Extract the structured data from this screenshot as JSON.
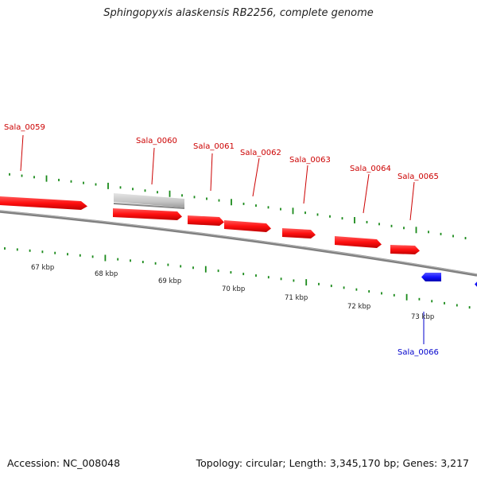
{
  "title": "Sphingopyxis alaskensis RB2256, complete genome",
  "footer": {
    "accession": "Accession: NC_008048",
    "summary": "Topology: circular; Length: 3,345,170 bp; Genes: 3,217"
  },
  "colors": {
    "forward_gene": "#ff1a1a",
    "reverse_gene": "#1a1aff",
    "pseudo_gene": "#c8c8c8",
    "backbone": "#808080",
    "tick": "#1a8a1a",
    "forward_label": "#cc0000",
    "reverse_label": "#0000cc"
  },
  "genes": [
    {
      "name": "Sala_0059",
      "strand": "+",
      "type": "gene"
    },
    {
      "name": "Sala_0060",
      "strand": "+",
      "type": "pseudo"
    },
    {
      "name": "Sala_0061",
      "strand": "+",
      "type": "gene"
    },
    {
      "name": "Sala_0062",
      "strand": "+",
      "type": "gene"
    },
    {
      "name": "Sala_0063",
      "strand": "+",
      "type": "gene"
    },
    {
      "name": "Sala_0064",
      "strand": "+",
      "type": "gene"
    },
    {
      "name": "Sala_0065",
      "strand": "+",
      "type": "gene"
    },
    {
      "name": "Sala_0066",
      "strand": "-",
      "type": "gene"
    }
  ],
  "kbp_labels": [
    "67 kbp",
    "68 kbp",
    "69 kbp",
    "70 kbp",
    "71 kbp",
    "72 kbp",
    "73 kbp"
  ]
}
